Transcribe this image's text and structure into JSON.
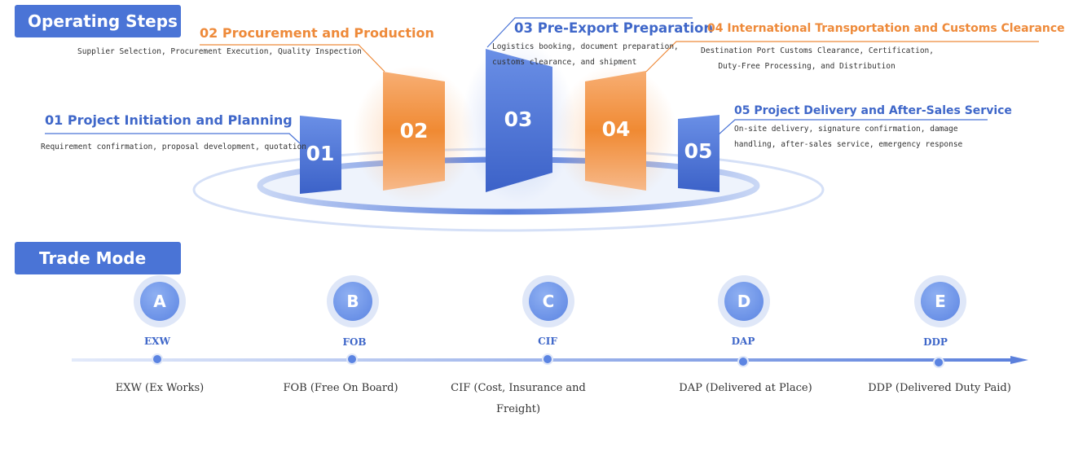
{
  "sections": {
    "operating_steps": "Operating Steps",
    "trade_mode": "Trade Mode"
  },
  "steps": [
    {
      "number": "01",
      "title": "01 Project Initiation and Planning",
      "desc": [
        "Requirement confirmation, proposal development, quotation"
      ]
    },
    {
      "number": "02",
      "title": "02 Procurement and Production",
      "desc": [
        "Supplier Selection, Procurement Execution, Quality Inspection"
      ]
    },
    {
      "number": "03",
      "title": "03 Pre-Export Preparation",
      "desc": [
        "Logistics booking, document preparation,",
        "customs clearance, and shipment"
      ]
    },
    {
      "number": "04",
      "title": "04 International Transportation and Customs Clearance",
      "desc": [
        "Destination Port Customs Clearance, Certification,",
        "Duty-Free Processing, and Distribution"
      ]
    },
    {
      "number": "05",
      "title": "05 Project Delivery and After-Sales Service",
      "desc": [
        "On-site delivery, signature confirmation, damage",
        "handling, after-sales service, emergency response"
      ]
    }
  ],
  "trade_modes": [
    {
      "letter": "A",
      "code": "EXW",
      "desc": [
        "EXW (Ex Works)"
      ]
    },
    {
      "letter": "B",
      "code": "FOB",
      "desc": [
        "FOB (Free On Board)"
      ]
    },
    {
      "letter": "C",
      "code": "CIF",
      "desc": [
        "CIF (Cost, Insurance and",
        "Freight)"
      ]
    },
    {
      "letter": "D",
      "code": "DAP",
      "desc": [
        "DAP (Delivered at Place)"
      ]
    },
    {
      "letter": "E",
      "code": "DDP",
      "desc": [
        "DDP (Delivered Duty Paid)"
      ]
    }
  ],
  "colors": {
    "blue": "#4a74d6",
    "orange": "#f08a33",
    "text": "#333333"
  }
}
